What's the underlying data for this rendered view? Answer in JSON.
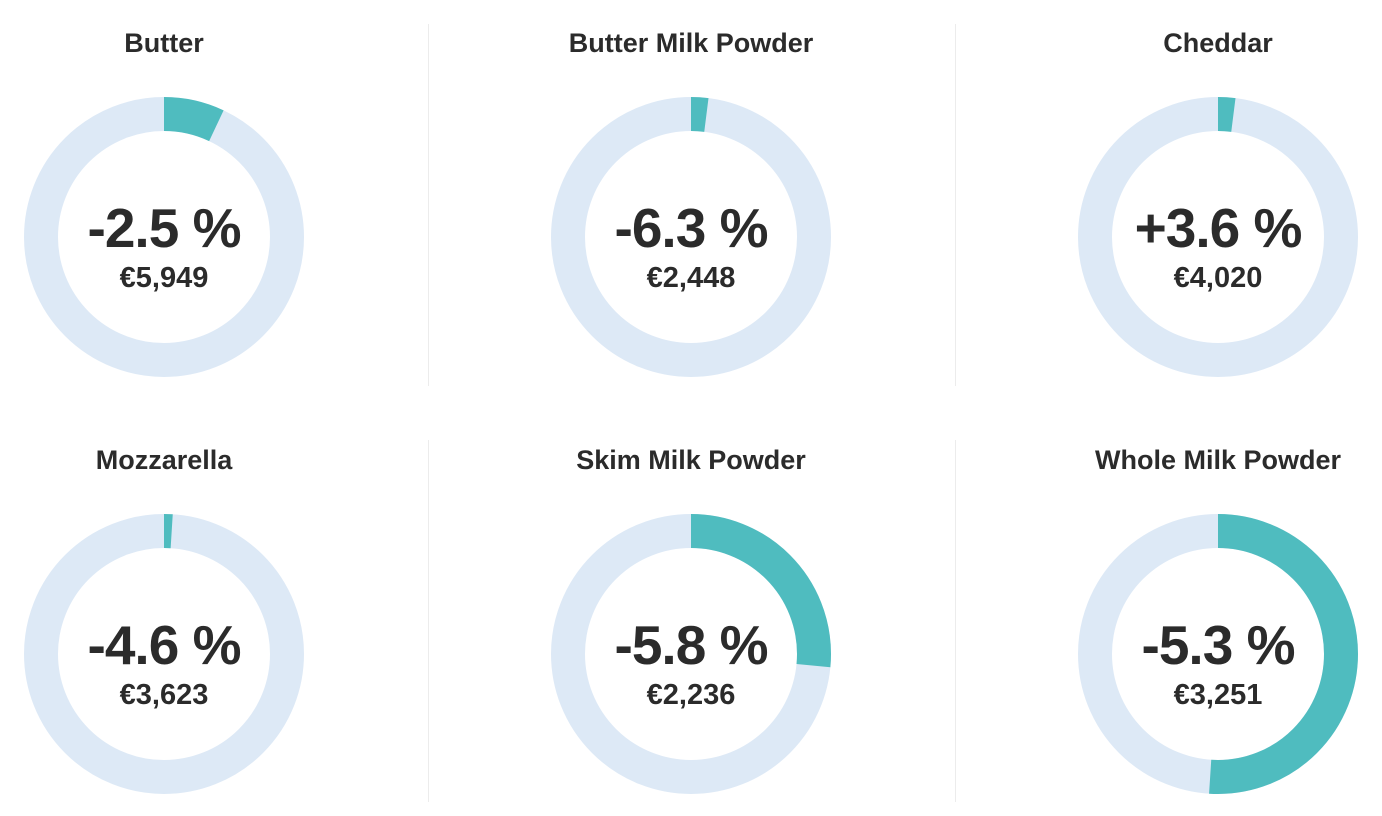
{
  "colors": {
    "track": "#dde9f6",
    "fill": "#4fbcbf",
    "text": "#2b2b2b"
  },
  "chart_data": {
    "type": "pie",
    "variant": "donut-grid",
    "items": [
      {
        "name": "Butter",
        "change": "-2.5 %",
        "price": "€5,949",
        "fill_fraction": 0.07
      },
      {
        "name": "Butter Milk Powder",
        "change": "-6.3 %",
        "price": "€2,448",
        "fill_fraction": 0.02
      },
      {
        "name": "Cheddar",
        "change": "+3.6 %",
        "price": "€4,020",
        "fill_fraction": 0.02
      },
      {
        "name": "Mozzarella",
        "change": "-4.6 %",
        "price": "€3,623",
        "fill_fraction": 0.01
      },
      {
        "name": "Skim Milk Powder",
        "change": "-5.8 %",
        "price": "€2,236",
        "fill_fraction": 0.265
      },
      {
        "name": "Whole Milk Powder",
        "change": "-5.3 %",
        "price": "€3,251",
        "fill_fraction": 0.51
      }
    ]
  }
}
